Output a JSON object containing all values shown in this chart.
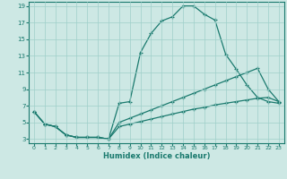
{
  "xlabel": "Humidex (Indice chaleur)",
  "background_color": "#cde8e4",
  "grid_color": "#9ecfca",
  "line_color": "#1a7a6e",
  "xlim": [
    -0.5,
    23.5
  ],
  "ylim": [
    2.5,
    19.5
  ],
  "xticks": [
    0,
    1,
    2,
    3,
    4,
    5,
    6,
    7,
    8,
    9,
    10,
    11,
    12,
    13,
    14,
    15,
    16,
    17,
    18,
    19,
    20,
    21,
    22,
    23
  ],
  "yticks": [
    3,
    5,
    7,
    9,
    11,
    13,
    15,
    17,
    19
  ],
  "line1_x": [
    0,
    1,
    2,
    3,
    4,
    5,
    6,
    7,
    8,
    9,
    10,
    11,
    12,
    13,
    14,
    15,
    16,
    17,
    18,
    19,
    20,
    21,
    22,
    23
  ],
  "line1_y": [
    6.3,
    4.8,
    4.5,
    3.5,
    3.2,
    3.2,
    3.2,
    3.0,
    7.3,
    7.5,
    13.4,
    15.7,
    17.2,
    17.7,
    19.0,
    19.0,
    18.0,
    17.3,
    13.2,
    11.4,
    9.5,
    8.0,
    7.5,
    7.3
  ],
  "line2_x": [
    0,
    1,
    2,
    3,
    4,
    5,
    6,
    7,
    8,
    9,
    10,
    11,
    12,
    13,
    14,
    15,
    16,
    17,
    18,
    19,
    20,
    21,
    22,
    23
  ],
  "line2_y": [
    6.3,
    4.8,
    4.5,
    3.5,
    3.2,
    3.2,
    3.2,
    3.0,
    5.0,
    5.5,
    6.0,
    6.5,
    7.0,
    7.5,
    8.0,
    8.5,
    9.0,
    9.5,
    10.0,
    10.5,
    11.0,
    11.5,
    9.0,
    7.5
  ],
  "line3_x": [
    0,
    1,
    2,
    3,
    4,
    5,
    6,
    7,
    8,
    9,
    10,
    11,
    12,
    13,
    14,
    15,
    16,
    17,
    18,
    19,
    20,
    21,
    22,
    23
  ],
  "line3_y": [
    6.3,
    4.8,
    4.5,
    3.5,
    3.2,
    3.2,
    3.2,
    3.0,
    4.5,
    4.8,
    5.1,
    5.4,
    5.7,
    6.0,
    6.3,
    6.6,
    6.8,
    7.1,
    7.3,
    7.5,
    7.7,
    7.9,
    8.0,
    7.5
  ]
}
